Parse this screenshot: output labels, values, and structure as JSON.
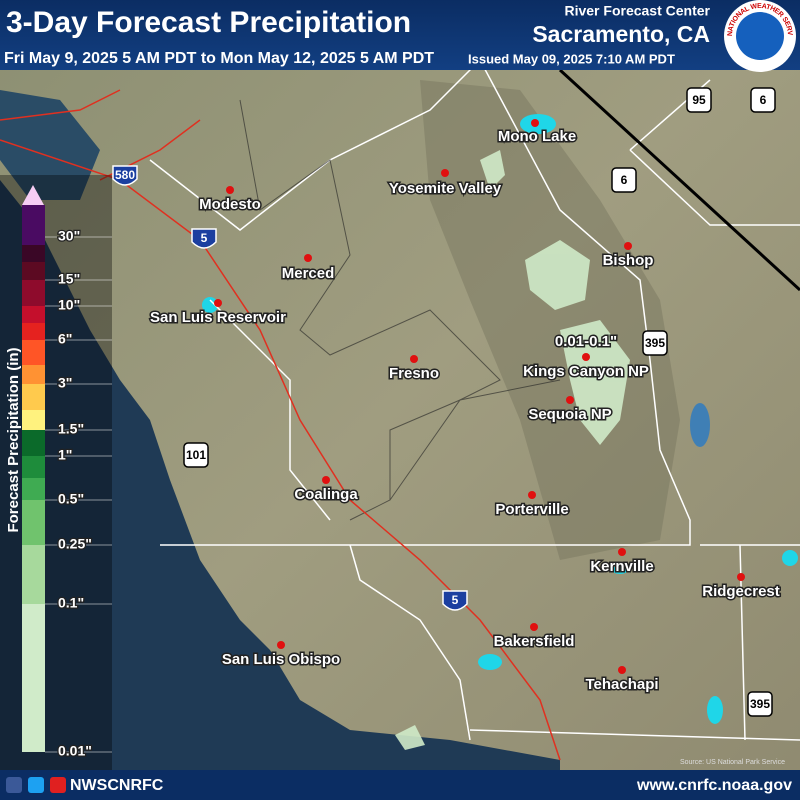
{
  "header": {
    "title": "3-Day Forecast Precipitation",
    "period": "Fri May 9, 2025 5 AM PDT to Mon May 12, 2025 5 AM PDT",
    "issued": "Issued May 09, 2025 7:10 AM PDT",
    "agency": "River Forecast Center",
    "office": "Sacramento, CA",
    "logo": "NATIONAL WEATHER SERVICE"
  },
  "legend": {
    "title": "Forecast Precipitation (in)",
    "labels": [
      "30\"",
      "15\"",
      "10\"",
      "6\"",
      "3\"",
      "1.5\"",
      "1\"",
      "0.5\"",
      "0.25\"",
      "0.1\"",
      "0.01\""
    ],
    "colors": [
      "#f6cdf4",
      "#4a0b62",
      "#3a0726",
      "#5c0a22",
      "#8e0b2c",
      "#c40f2c",
      "#e5221f",
      "#ff5526",
      "#ff9233",
      "#ffca4d",
      "#fff27e",
      "#0b6a2a",
      "#1e8c3b",
      "#3fab52",
      "#70c36d",
      "#a7d99c",
      "#d0ebc9"
    ]
  },
  "places": [
    "Mono Lake",
    "Yosemite Valley",
    "Modesto",
    "Bishop",
    "Merced",
    "San Luis Reservoir",
    "Kings Canyon NP",
    "Fresno",
    "Sequoia NP",
    "Coalinga",
    "Porterville",
    "Kernville",
    "Ridgecrest",
    "Bakersfield",
    "San Luis Obispo",
    "Tehachapi"
  ],
  "highways": [
    "95",
    "6",
    "6",
    "580",
    "5",
    "395",
    "101",
    "5",
    "395"
  ],
  "annotation": "0.01-0.1\"",
  "credit": "Source: US National Park Service",
  "footer": {
    "social": "NWSCNRFC",
    "url": "www.cnrfc.noaa.gov"
  }
}
